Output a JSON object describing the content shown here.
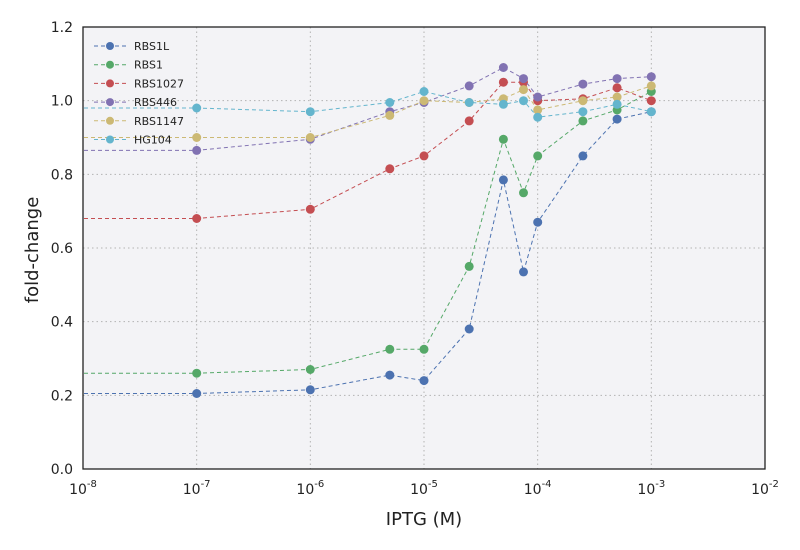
{
  "chart_data": {
    "type": "line",
    "title": "",
    "xlabel": "IPTG (M)",
    "ylabel": "fold-change",
    "xscale": "log",
    "xlim": [
      1e-08,
      0.01
    ],
    "ylim": [
      0.0,
      1.2
    ],
    "x_ticks": [
      {
        "value": 1e-08,
        "base": "10",
        "exp": "-8"
      },
      {
        "value": 1e-07,
        "base": "10",
        "exp": "-7"
      },
      {
        "value": 1e-06,
        "base": "10",
        "exp": "-6"
      },
      {
        "value": 1e-05,
        "base": "10",
        "exp": "-5"
      },
      {
        "value": 0.0001,
        "base": "10",
        "exp": "-4"
      },
      {
        "value": 0.001,
        "base": "10",
        "exp": "-3"
      },
      {
        "value": 0.01,
        "base": "10",
        "exp": "-2"
      }
    ],
    "y_ticks": [
      {
        "value": 0.0,
        "label": "0.0"
      },
      {
        "value": 0.2,
        "label": "0.2"
      },
      {
        "value": 0.4,
        "label": "0.4"
      },
      {
        "value": 0.6,
        "label": "0.6"
      },
      {
        "value": 0.8,
        "label": "0.8"
      },
      {
        "value": 1.0,
        "label": "1.0"
      },
      {
        "value": 1.2,
        "label": "1.2"
      }
    ],
    "grid": true,
    "legend_position": "top-left",
    "x": [
      0,
      1e-07,
      1e-06,
      5e-06,
      1e-05,
      2.5e-05,
      5e-05,
      7.5e-05,
      0.0001,
      0.00025,
      0.0005,
      0.001
    ],
    "series": [
      {
        "name": "RBS1L",
        "color": "#4c72b0",
        "values": [
          0.205,
          0.205,
          0.215,
          0.255,
          0.24,
          0.38,
          0.785,
          0.535,
          0.67,
          0.85,
          0.95,
          0.97
        ]
      },
      {
        "name": "RBS1",
        "color": "#55a868",
        "values": [
          0.26,
          0.26,
          0.27,
          0.325,
          0.325,
          0.55,
          0.895,
          0.75,
          0.85,
          0.945,
          0.975,
          1.025
        ]
      },
      {
        "name": "RBS1027",
        "color": "#c44e52",
        "values": [
          0.68,
          0.68,
          0.705,
          0.815,
          0.85,
          0.945,
          1.05,
          1.05,
          1.0,
          1.005,
          1.035,
          1.0
        ]
      },
      {
        "name": "RBS446",
        "color": "#8172b2",
        "values": [
          0.865,
          0.865,
          0.895,
          0.97,
          0.995,
          1.04,
          1.09,
          1.06,
          1.01,
          1.045,
          1.06,
          1.065
        ]
      },
      {
        "name": "RBS1147",
        "color": "#ccb974",
        "values": [
          0.9,
          0.9,
          0.9,
          0.96,
          1.0,
          0.995,
          1.005,
          1.03,
          0.975,
          1.0,
          1.01,
          1.04
        ]
      },
      {
        "name": "HG104",
        "color": "#64b5cd",
        "values": [
          0.98,
          0.98,
          0.97,
          0.995,
          1.025,
          0.995,
          0.99,
          1.0,
          0.955,
          0.97,
          0.99,
          0.97
        ]
      }
    ]
  },
  "colors": {
    "plot_background": "#f3f3f6",
    "grid": "#b3b3b3",
    "frame": "#222222"
  }
}
